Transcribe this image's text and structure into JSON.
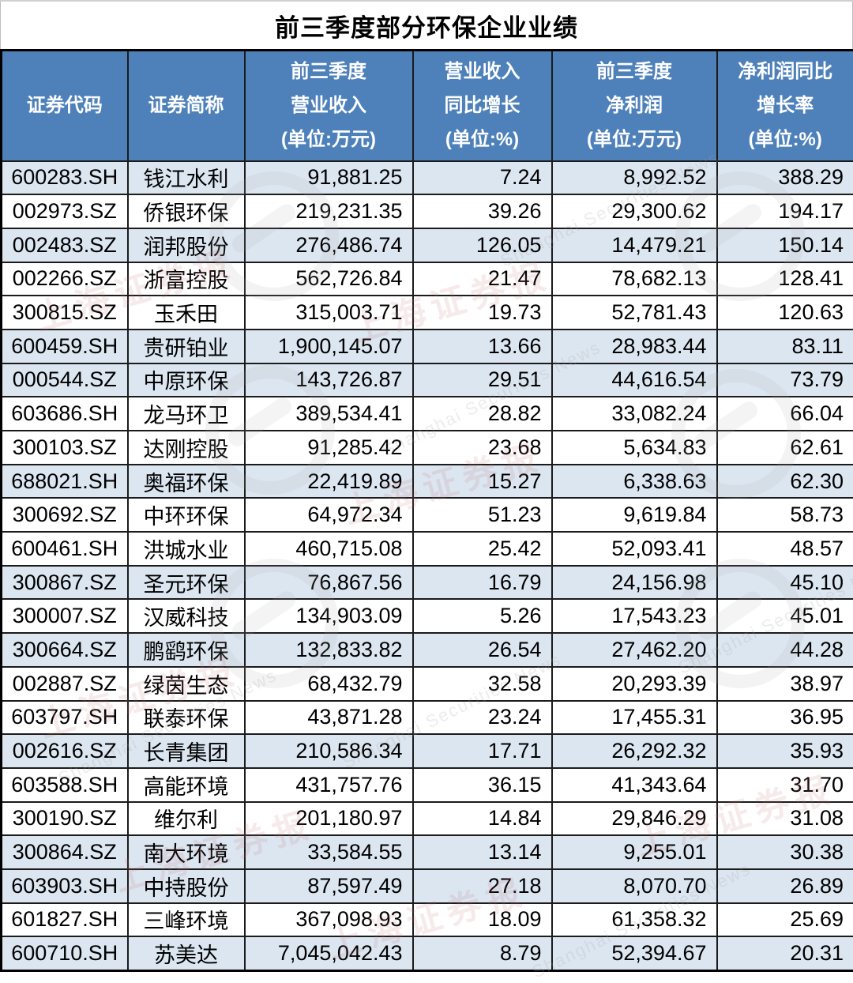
{
  "title": "前三季度部分环保企业业绩",
  "colors": {
    "header_bg": "#4E81BA",
    "header_text": "#FFFFFF",
    "row_shaded_bg": "#DCE6F1",
    "row_plain_bg": "#FFFFFF",
    "grid_border": "#1B1B1B",
    "outer_border": "#000000"
  },
  "watermark": {
    "text_cn": "上海证券报",
    "text_en": "Shanghai Securities News",
    "swirl_icon": "securities-news-logo-swirl"
  },
  "table": {
    "columns": [
      {
        "key": "code",
        "lines": [
          "证券代码"
        ]
      },
      {
        "key": "name",
        "lines": [
          "证券简称"
        ]
      },
      {
        "key": "revenue",
        "lines": [
          "前三季度",
          "营业收入",
          "(单位:万元)"
        ]
      },
      {
        "key": "revenue_growth",
        "lines": [
          "营业收入",
          "同比增长",
          "(单位:%)"
        ]
      },
      {
        "key": "profit",
        "lines": [
          "前三季度",
          "净利润",
          "(单位:万元)"
        ]
      },
      {
        "key": "profit_growth",
        "lines": [
          "净利润同比",
          "增长率",
          "(单位:%)"
        ]
      }
    ],
    "rows": [
      {
        "code": "600283.SH",
        "name": "钱江水利",
        "revenue": "91,881.25",
        "revenue_growth": "7.24",
        "profit": "8,992.52",
        "profit_growth": "388.29",
        "shaded": true
      },
      {
        "code": "002973.SZ",
        "name": "侨银环保",
        "revenue": "219,231.35",
        "revenue_growth": "39.26",
        "profit": "29,300.62",
        "profit_growth": "194.17",
        "shaded": false
      },
      {
        "code": "002483.SZ",
        "name": "润邦股份",
        "revenue": "276,486.74",
        "revenue_growth": "126.05",
        "profit": "14,479.21",
        "profit_growth": "150.14",
        "shaded": true
      },
      {
        "code": "002266.SZ",
        "name": "浙富控股",
        "revenue": "562,726.84",
        "revenue_growth": "21.47",
        "profit": "78,682.13",
        "profit_growth": "128.41",
        "shaded": false
      },
      {
        "code": "300815.SZ",
        "name": "玉禾田",
        "revenue": "315,003.71",
        "revenue_growth": "19.73",
        "profit": "52,781.43",
        "profit_growth": "120.63",
        "shaded": false
      },
      {
        "code": "600459.SH",
        "name": "贵研铂业",
        "revenue": "1,900,145.07",
        "revenue_growth": "13.66",
        "profit": "28,983.44",
        "profit_growth": "83.11",
        "shaded": true
      },
      {
        "code": "000544.SZ",
        "name": "中原环保",
        "revenue": "143,726.87",
        "revenue_growth": "29.51",
        "profit": "44,616.54",
        "profit_growth": "73.79",
        "shaded": true
      },
      {
        "code": "603686.SH",
        "name": "龙马环卫",
        "revenue": "389,534.41",
        "revenue_growth": "28.82",
        "profit": "33,082.24",
        "profit_growth": "66.04",
        "shaded": false
      },
      {
        "code": "300103.SZ",
        "name": "达刚控股",
        "revenue": "91,285.42",
        "revenue_growth": "23.68",
        "profit": "5,634.83",
        "profit_growth": "62.61",
        "shaded": false
      },
      {
        "code": "688021.SH",
        "name": "奥福环保",
        "revenue": "22,419.89",
        "revenue_growth": "15.27",
        "profit": "6,338.63",
        "profit_growth": "62.30",
        "shaded": true
      },
      {
        "code": "300692.SZ",
        "name": "中环环保",
        "revenue": "64,972.34",
        "revenue_growth": "51.23",
        "profit": "9,619.84",
        "profit_growth": "58.73",
        "shaded": false
      },
      {
        "code": "600461.SH",
        "name": "洪城水业",
        "revenue": "460,715.08",
        "revenue_growth": "25.42",
        "profit": "52,093.41",
        "profit_growth": "48.57",
        "shaded": false
      },
      {
        "code": "300867.SZ",
        "name": "圣元环保",
        "revenue": "76,867.56",
        "revenue_growth": "16.79",
        "profit": "24,156.98",
        "profit_growth": "45.10",
        "shaded": true
      },
      {
        "code": "300007.SZ",
        "name": "汉威科技",
        "revenue": "134,903.09",
        "revenue_growth": "5.26",
        "profit": "17,543.23",
        "profit_growth": "45.01",
        "shaded": false
      },
      {
        "code": "300664.SZ",
        "name": "鹏鹞环保",
        "revenue": "132,833.82",
        "revenue_growth": "26.54",
        "profit": "27,462.20",
        "profit_growth": "44.28",
        "shaded": true
      },
      {
        "code": "002887.SZ",
        "name": "绿茵生态",
        "revenue": "68,432.79",
        "revenue_growth": "32.58",
        "profit": "20,293.39",
        "profit_growth": "38.97",
        "shaded": false
      },
      {
        "code": "603797.SH",
        "name": "联泰环保",
        "revenue": "43,871.28",
        "revenue_growth": "23.24",
        "profit": "17,455.31",
        "profit_growth": "36.95",
        "shaded": false
      },
      {
        "code": "002616.SZ",
        "name": "长青集团",
        "revenue": "210,586.34",
        "revenue_growth": "17.71",
        "profit": "26,292.32",
        "profit_growth": "35.93",
        "shaded": true
      },
      {
        "code": "603588.SH",
        "name": "高能环境",
        "revenue": "431,757.76",
        "revenue_growth": "36.15",
        "profit": "41,343.64",
        "profit_growth": "31.70",
        "shaded": false
      },
      {
        "code": "300190.SZ",
        "name": "维尔利",
        "revenue": "201,180.97",
        "revenue_growth": "14.84",
        "profit": "29,846.29",
        "profit_growth": "31.08",
        "shaded": false
      },
      {
        "code": "300864.SZ",
        "name": "南大环境",
        "revenue": "33,584.55",
        "revenue_growth": "13.14",
        "profit": "9,255.01",
        "profit_growth": "30.38",
        "shaded": true
      },
      {
        "code": "603903.SH",
        "name": "中持股份",
        "revenue": "87,597.49",
        "revenue_growth": "27.18",
        "profit": "8,070.70",
        "profit_growth": "26.89",
        "shaded": true
      },
      {
        "code": "601827.SH",
        "name": "三峰环境",
        "revenue": "367,098.93",
        "revenue_growth": "18.09",
        "profit": "61,358.32",
        "profit_growth": "25.69",
        "shaded": false
      },
      {
        "code": "600710.SH",
        "name": "苏美达",
        "revenue": "7,045,042.43",
        "revenue_growth": "8.79",
        "profit": "52,394.67",
        "profit_growth": "20.31",
        "shaded": true
      }
    ]
  },
  "chart_data": {
    "type": "table",
    "title": "前三季度部分环保企业业绩",
    "columns": [
      "证券代码",
      "证券简称",
      "前三季度营业收入(单位:万元)",
      "营业收入同比增长(单位:%)",
      "前三季度净利润(单位:万元)",
      "净利润同比增长率(单位:%)"
    ],
    "rows": [
      [
        "600283.SH",
        "钱江水利",
        91881.25,
        7.24,
        8992.52,
        388.29
      ],
      [
        "002973.SZ",
        "侨银环保",
        219231.35,
        39.26,
        29300.62,
        194.17
      ],
      [
        "002483.SZ",
        "润邦股份",
        276486.74,
        126.05,
        14479.21,
        150.14
      ],
      [
        "002266.SZ",
        "浙富控股",
        562726.84,
        21.47,
        78682.13,
        128.41
      ],
      [
        "300815.SZ",
        "玉禾田",
        315003.71,
        19.73,
        52781.43,
        120.63
      ],
      [
        "600459.SH",
        "贵研铂业",
        1900145.07,
        13.66,
        28983.44,
        83.11
      ],
      [
        "000544.SZ",
        "中原环保",
        143726.87,
        29.51,
        44616.54,
        73.79
      ],
      [
        "603686.SH",
        "龙马环卫",
        389534.41,
        28.82,
        33082.24,
        66.04
      ],
      [
        "300103.SZ",
        "达刚控股",
        91285.42,
        23.68,
        5634.83,
        62.61
      ],
      [
        "688021.SH",
        "奥福环保",
        22419.89,
        15.27,
        6338.63,
        62.3
      ],
      [
        "300692.SZ",
        "中环环保",
        64972.34,
        51.23,
        9619.84,
        58.73
      ],
      [
        "600461.SH",
        "洪城水业",
        460715.08,
        25.42,
        52093.41,
        48.57
      ],
      [
        "300867.SZ",
        "圣元环保",
        76867.56,
        16.79,
        24156.98,
        45.1
      ],
      [
        "300007.SZ",
        "汉威科技",
        134903.09,
        5.26,
        17543.23,
        45.01
      ],
      [
        "300664.SZ",
        "鹏鹞环保",
        132833.82,
        26.54,
        27462.2,
        44.28
      ],
      [
        "002887.SZ",
        "绿茵生态",
        68432.79,
        32.58,
        20293.39,
        38.97
      ],
      [
        "603797.SH",
        "联泰环保",
        43871.28,
        23.24,
        17455.31,
        36.95
      ],
      [
        "002616.SZ",
        "长青集团",
        210586.34,
        17.71,
        26292.32,
        35.93
      ],
      [
        "603588.SH",
        "高能环境",
        431757.76,
        36.15,
        41343.64,
        31.7
      ],
      [
        "300190.SZ",
        "维尔利",
        201180.97,
        14.84,
        29846.29,
        31.08
      ],
      [
        "300864.SZ",
        "南大环境",
        33584.55,
        13.14,
        9255.01,
        30.38
      ],
      [
        "603903.SH",
        "中持股份",
        87597.49,
        27.18,
        8070.7,
        26.89
      ],
      [
        "601827.SH",
        "三峰环境",
        367098.93,
        18.09,
        61358.32,
        25.69
      ],
      [
        "600710.SH",
        "苏美达",
        7045042.43,
        8.79,
        52394.67,
        20.31
      ]
    ]
  }
}
